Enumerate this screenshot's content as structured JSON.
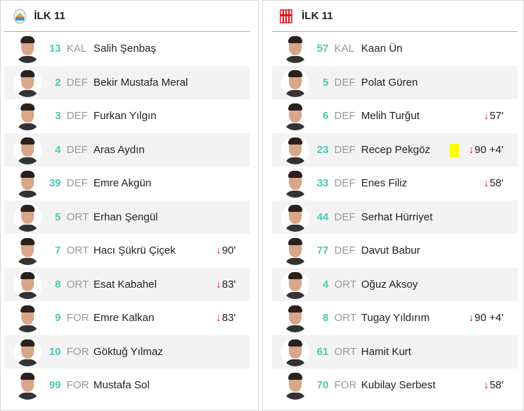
{
  "home": {
    "title": "İLK 11",
    "logo": "home-club-crest",
    "players": [
      {
        "number": "13",
        "position": "KAL",
        "name": "Salih Şenbaş"
      },
      {
        "number": "2",
        "position": "DEF",
        "name": "Bekir Mustafa Meral"
      },
      {
        "number": "3",
        "position": "DEF",
        "name": "Furkan Yılgın"
      },
      {
        "number": "4",
        "position": "DEF",
        "name": "Aras Aydın"
      },
      {
        "number": "39",
        "position": "DEF",
        "name": "Emre Akgün"
      },
      {
        "number": "5",
        "position": "ORT",
        "name": "Erhan Şengül"
      },
      {
        "number": "7",
        "position": "ORT",
        "name": "Hacı Şükrü Çiçek",
        "sub_out": "90'"
      },
      {
        "number": "8",
        "position": "ORT",
        "name": "Esat Kabahel",
        "sub_out": "83'"
      },
      {
        "number": "9",
        "position": "FOR",
        "name": "Emre Kalkan",
        "sub_out": "83'"
      },
      {
        "number": "10",
        "position": "FOR",
        "name": "Göktuğ Yılmaz"
      },
      {
        "number": "99",
        "position": "FOR",
        "name": "Mustafa Sol"
      }
    ]
  },
  "away": {
    "title": "İLK 11",
    "logo": "away-club-crest",
    "players": [
      {
        "number": "57",
        "position": "KAL",
        "name": "Kaan Ün"
      },
      {
        "number": "5",
        "position": "DEF",
        "name": "Polat Güren"
      },
      {
        "number": "6",
        "position": "DEF",
        "name": "Melih Turğut",
        "sub_out": "57'"
      },
      {
        "number": "23",
        "position": "DEF",
        "name": "Recep Pekgöz",
        "sub_out": "90 +4'",
        "yellow_card": true
      },
      {
        "number": "33",
        "position": "DEF",
        "name": "Enes Filiz",
        "sub_out": "58'"
      },
      {
        "number": "44",
        "position": "DEF",
        "name": "Serhat Hürriyet"
      },
      {
        "number": "77",
        "position": "DEF",
        "name": "Davut Babur"
      },
      {
        "number": "4",
        "position": "ORT",
        "name": "Oğuz Aksoy"
      },
      {
        "number": "8",
        "position": "ORT",
        "name": "Tugay Yıldırım",
        "sub_out": "90 +4'"
      },
      {
        "number": "61",
        "position": "ORT",
        "name": "Hamit Kurt"
      },
      {
        "number": "70",
        "position": "FOR",
        "name": "Kubilay Serbest",
        "sub_out": "58'"
      }
    ]
  },
  "colors": {
    "number": "#4cc9b5",
    "sub_arrow": "#e3141b",
    "yellow_card": "#ffff00",
    "row_alt": "#f3f3f3"
  },
  "icons": {
    "sub_out": "arrow-down-icon"
  }
}
